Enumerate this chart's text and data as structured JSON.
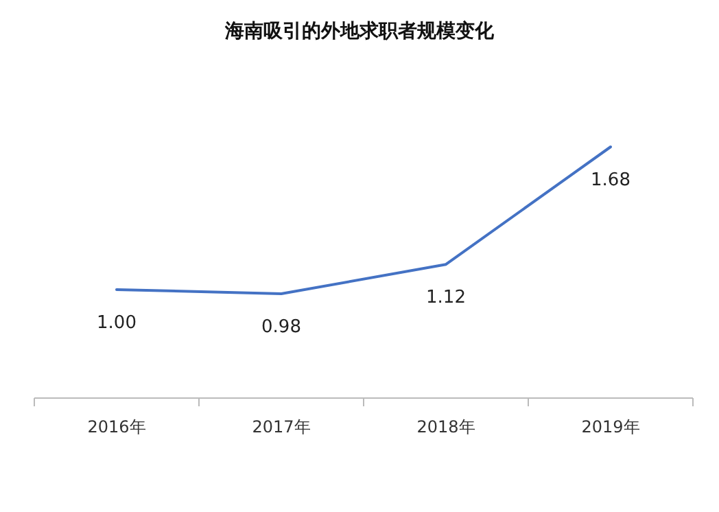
{
  "chart_data": {
    "type": "line",
    "title": "海南吸引的外地求职者规模变化",
    "categories": [
      "2016年",
      "2017年",
      "2018年",
      "2019年"
    ],
    "series": [
      {
        "color": "#4472c4",
        "values": [
          1.0,
          0.98,
          1.12,
          1.68
        ],
        "value_labels": [
          "1.00",
          "0.98",
          "1.12",
          "1.68"
        ]
      }
    ],
    "tick_labels": "x",
    "marker": "none",
    "line_style": "solid"
  }
}
